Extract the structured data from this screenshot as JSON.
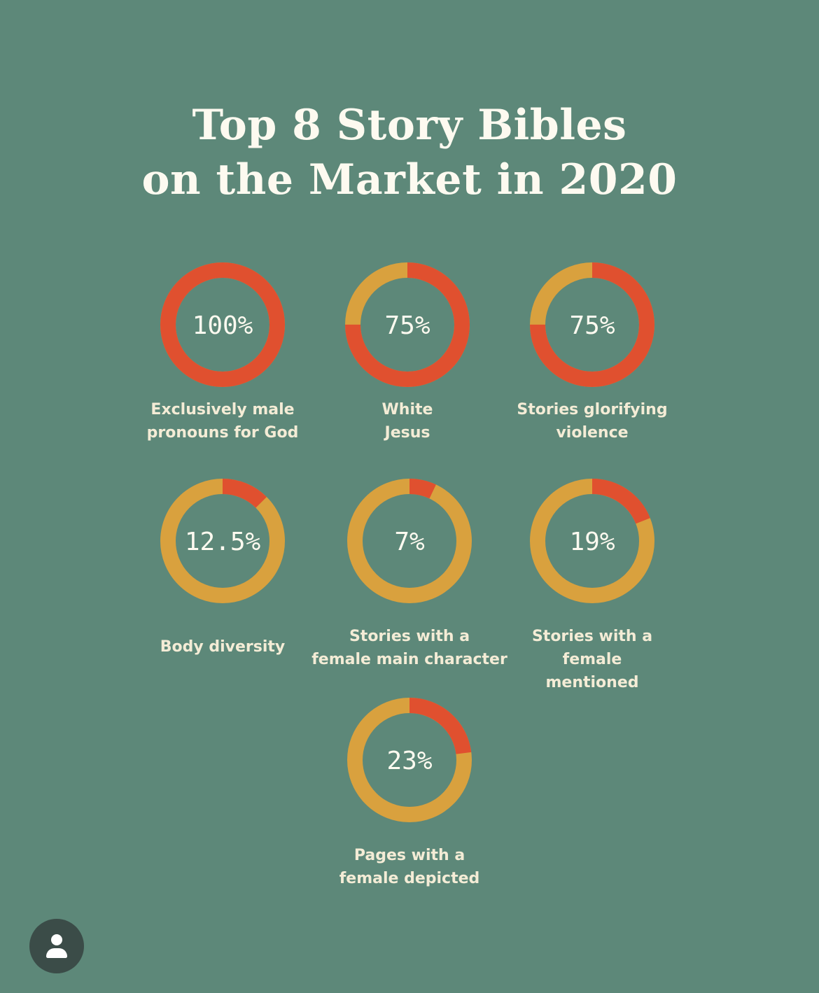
{
  "title": {
    "line1": "Top 8 Story Bibles",
    "line2": "on the Market in 2020"
  },
  "colors": {
    "background": "#5d8879",
    "ring_red": "#e0502f",
    "ring_gold": "#d9a13e",
    "text_light": "#fdfaf0"
  },
  "chart_data": {
    "type": "donut",
    "items": [
      {
        "value": 100,
        "display": "100%",
        "label_lines": [
          "Exclusively male",
          "pronouns for God"
        ]
      },
      {
        "value": 75,
        "display": "75%",
        "label_lines": [
          "White",
          "Jesus"
        ]
      },
      {
        "value": 75,
        "display": "75%",
        "label_lines": [
          "Stories glorifying",
          "violence"
        ]
      },
      {
        "value": 12.5,
        "display": "12.5%",
        "label_lines": [
          "Body diversity"
        ]
      },
      {
        "value": 7,
        "display": "7%",
        "label_lines": [
          "Stories with a",
          "female main character"
        ]
      },
      {
        "value": 19,
        "display": "19%",
        "label_lines": [
          "Stories with a",
          "female",
          "mentioned"
        ]
      },
      {
        "value": 23,
        "display": "23%",
        "label_lines": [
          "Pages with a",
          "female depicted"
        ]
      }
    ]
  },
  "avatar": {
    "icon": "user-icon"
  }
}
